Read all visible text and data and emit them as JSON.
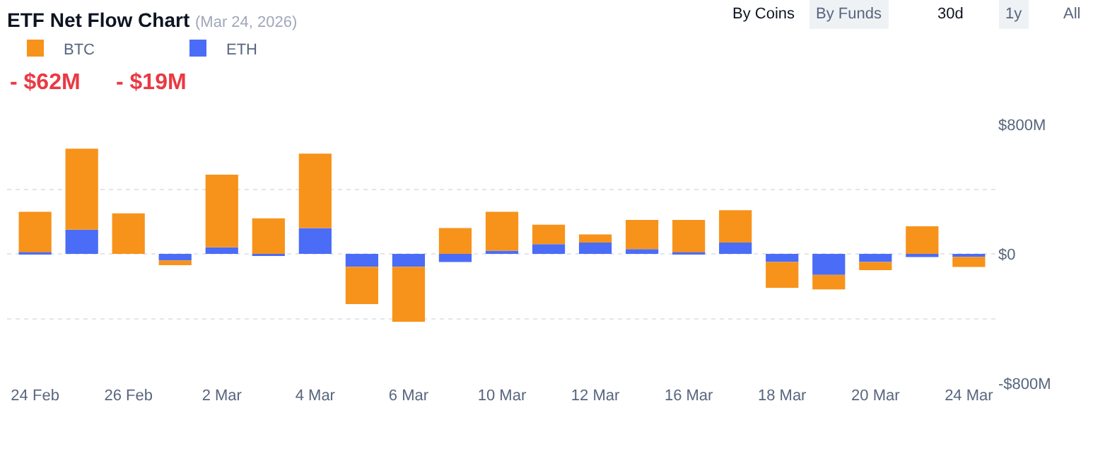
{
  "chart_data": {
    "type": "bar",
    "title": "ETF Net Flow Chart",
    "subtitle": "(Mar 24, 2026)",
    "categories": [
      "24 Feb",
      null,
      "26 Feb",
      null,
      "2 Mar",
      null,
      "4 Mar",
      null,
      "6 Mar",
      null,
      "10 Mar",
      null,
      "12 Mar",
      null,
      "16 Mar",
      null,
      "18 Mar",
      null,
      "20 Mar",
      null,
      "24 Mar"
    ],
    "stacked": true,
    "series": [
      {
        "name": "ETH",
        "color": "#4a6cf7",
        "values": [
          10,
          150,
          0,
          -40,
          40,
          -10,
          160,
          -80,
          -80,
          -50,
          20,
          60,
          70,
          30,
          10,
          70,
          -50,
          -130,
          -50,
          -20,
          -19
        ]
      },
      {
        "name": "BTC",
        "color": "#f7931a",
        "values": [
          250,
          500,
          250,
          -30,
          450,
          220,
          460,
          -230,
          -340,
          160,
          240,
          120,
          50,
          180,
          200,
          200,
          -160,
          -90,
          -50,
          170,
          -62
        ]
      }
    ],
    "ylim": [
      -800,
      800
    ],
    "yticks": [
      {
        "value": -800,
        "label": "-$800M"
      },
      {
        "value": -400,
        "label": null
      },
      {
        "value": 0,
        "label": "$0"
      },
      {
        "value": 400,
        "label": null
      },
      {
        "value": 800,
        "label": "$800M"
      }
    ],
    "grid": "y",
    "legend": "top left",
    "annotations": [
      "- $62M",
      "- $19M",
      "By Coins",
      "By Funds",
      "30d",
      "1y",
      "All"
    ]
  }
}
